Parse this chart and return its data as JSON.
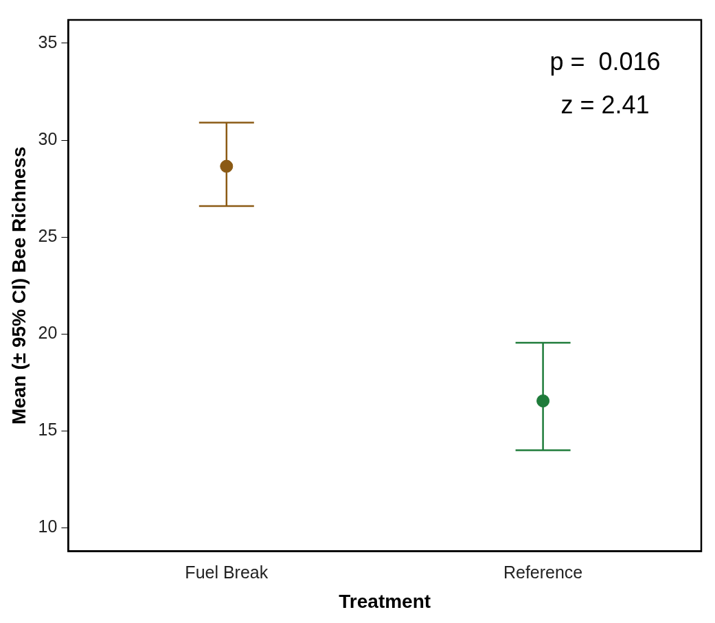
{
  "chart_data": {
    "type": "scatter",
    "xlabel": "Treatment",
    "ylabel": "Mean (± 95% CI) Bee Richness",
    "categories": [
      "Fuel Break",
      "Reference"
    ],
    "values": [
      28.65,
      16.55
    ],
    "colors": [
      "#8b5a14",
      "#1e7b3a"
    ],
    "errors": [
      [
        26.6,
        30.9
      ],
      [
        14.0,
        19.55
      ]
    ],
    "ylim": [
      8.8,
      36.2
    ],
    "yticks": [
      10,
      15,
      20,
      25,
      30,
      35
    ],
    "marker": "circle",
    "grid": false,
    "legend": false,
    "annotations": [
      "p =  0.016",
      "z = 2.41"
    ]
  }
}
